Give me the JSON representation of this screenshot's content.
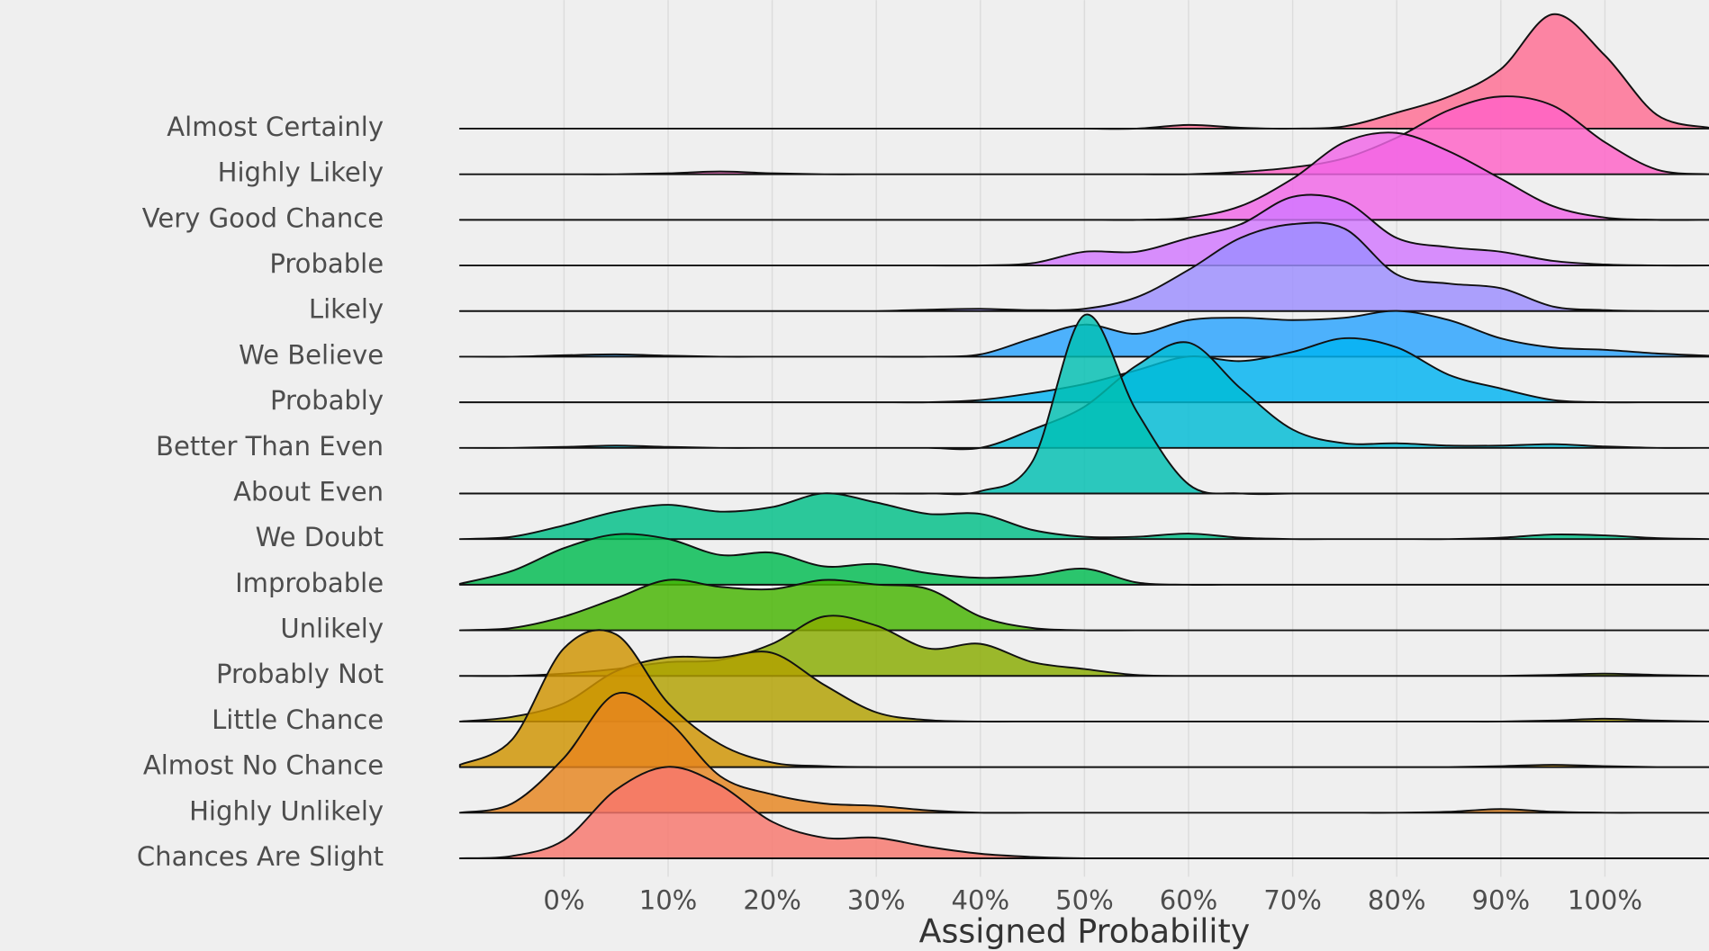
{
  "chart_data": {
    "type": "ridgeline",
    "x_label": "Assigned Probability",
    "xlim": [
      -10,
      110
    ],
    "xticks": [
      {
        "value": 0,
        "label": "0%"
      },
      {
        "value": 10,
        "label": "10%"
      },
      {
        "value": 20,
        "label": "20%"
      },
      {
        "value": 30,
        "label": "30%"
      },
      {
        "value": 40,
        "label": "40%"
      },
      {
        "value": 50,
        "label": "50%"
      },
      {
        "value": 60,
        "label": "60%"
      },
      {
        "value": 70,
        "label": "70%"
      },
      {
        "value": 80,
        "label": "80%"
      },
      {
        "value": 90,
        "label": "90%"
      },
      {
        "value": 100,
        "label": "100%"
      }
    ],
    "grid": true,
    "x": [
      -10,
      -5,
      0,
      5,
      10,
      15,
      20,
      25,
      30,
      35,
      40,
      45,
      50,
      55,
      60,
      65,
      70,
      75,
      80,
      85,
      90,
      95,
      100,
      105,
      110
    ],
    "series": [
      {
        "name": "Almost Certainly",
        "color": "#ff6c92",
        "values": [
          0,
          0,
          0,
          0,
          0,
          0,
          0,
          0,
          0,
          0,
          0,
          0,
          0,
          0,
          0.08,
          0.02,
          0,
          0.05,
          0.35,
          0.7,
          1.3,
          2.5,
          1.6,
          0.3,
          0.02
        ]
      },
      {
        "name": "Highly Likely",
        "color": "#ff61c7",
        "values": [
          0,
          0,
          0,
          0,
          0.02,
          0.06,
          0.02,
          0,
          0,
          0,
          0,
          0,
          0,
          0,
          0,
          0.05,
          0.15,
          0.35,
          0.8,
          1.4,
          1.7,
          1.5,
          0.7,
          0.1,
          0
        ]
      },
      {
        "name": "Very Good Chance",
        "color": "#f166e8",
        "values": [
          0,
          0,
          0,
          0,
          0,
          0,
          0,
          0,
          0,
          0,
          0,
          0,
          0,
          0,
          0.05,
          0.3,
          0.9,
          1.7,
          1.9,
          1.5,
          0.9,
          0.3,
          0.05,
          0,
          0
        ]
      },
      {
        "name": "Probable",
        "color": "#d277ff",
        "values": [
          0,
          0,
          0,
          0,
          0,
          0,
          0,
          0,
          0,
          0,
          0,
          0.05,
          0.3,
          0.3,
          0.6,
          0.9,
          1.5,
          1.4,
          0.6,
          0.4,
          0.3,
          0.1,
          0.02,
          0,
          0
        ]
      },
      {
        "name": "Likely",
        "color": "#9c8dff",
        "values": [
          0,
          0,
          0,
          0,
          0,
          0,
          0,
          0,
          0,
          0.03,
          0.05,
          0.02,
          0.05,
          0.3,
          0.9,
          1.6,
          1.9,
          1.8,
          0.8,
          0.6,
          0.5,
          0.1,
          0.02,
          0,
          0
        ]
      },
      {
        "name": "We Believe",
        "color": "#29a3ff",
        "values": [
          0,
          0,
          0.03,
          0.05,
          0.02,
          0,
          0,
          0,
          0,
          0,
          0.05,
          0.4,
          0.7,
          0.5,
          0.8,
          0.85,
          0.8,
          0.85,
          1.0,
          0.8,
          0.4,
          0.2,
          0.15,
          0.07,
          0.02
        ]
      },
      {
        "name": "Probably",
        "color": "#00b3f2",
        "values": [
          0,
          0,
          0,
          0,
          0,
          0,
          0,
          0,
          0,
          0,
          0.05,
          0.2,
          0.4,
          0.7,
          1.0,
          0.9,
          1.1,
          1.4,
          1.2,
          0.6,
          0.3,
          0.05,
          0,
          0,
          0
        ]
      },
      {
        "name": "Better Than Even",
        "color": "#00bcd6",
        "values": [
          0,
          0,
          0.02,
          0.05,
          0.02,
          0,
          0,
          0,
          0,
          0,
          0,
          0.4,
          0.9,
          1.8,
          2.3,
          1.3,
          0.4,
          0.1,
          0.1,
          0.05,
          0.05,
          0.08,
          0.03,
          0,
          0
        ]
      },
      {
        "name": "About Even",
        "color": "#00c0b2",
        "values": [
          0,
          0,
          0,
          0,
          0,
          0,
          0,
          0,
          0,
          0,
          0.05,
          0.7,
          3.9,
          1.8,
          0.2,
          0,
          0,
          0,
          0,
          0,
          0,
          0,
          0,
          0,
          0
        ]
      },
      {
        "name": "We Doubt",
        "color": "#00c087",
        "values": [
          0,
          0.05,
          0.3,
          0.6,
          0.75,
          0.6,
          0.7,
          1.0,
          0.8,
          0.55,
          0.55,
          0.2,
          0.05,
          0.05,
          0.12,
          0.03,
          0,
          0,
          0,
          0,
          0.03,
          0.1,
          0.08,
          0.02,
          0
        ]
      },
      {
        "name": "Improbable",
        "color": "#00bc51",
        "values": [
          0.02,
          0.3,
          0.8,
          1.1,
          1.0,
          0.65,
          0.7,
          0.4,
          0.45,
          0.25,
          0.15,
          0.2,
          0.35,
          0.05,
          0,
          0,
          0,
          0,
          0,
          0,
          0,
          0,
          0,
          0,
          0
        ]
      },
      {
        "name": "Unlikely",
        "color": "#45b500",
        "values": [
          0,
          0.05,
          0.3,
          0.7,
          1.1,
          0.95,
          0.9,
          1.1,
          1.0,
          0.9,
          0.3,
          0.05,
          0,
          0,
          0,
          0,
          0,
          0,
          0,
          0,
          0,
          0,
          0,
          0,
          0
        ]
      },
      {
        "name": "Probably Not",
        "color": "#89ac00",
        "values": [
          0,
          0,
          0.05,
          0.15,
          0.3,
          0.35,
          0.7,
          1.3,
          1.1,
          0.6,
          0.7,
          0.3,
          0.15,
          0.02,
          0,
          0,
          0,
          0,
          0,
          0,
          0,
          0.02,
          0.05,
          0.02,
          0
        ]
      },
      {
        "name": "Little Chance",
        "color": "#b2a100",
        "values": [
          0,
          0.1,
          0.4,
          1.1,
          1.4,
          1.4,
          1.5,
          0.8,
          0.2,
          0.03,
          0,
          0,
          0,
          0,
          0,
          0,
          0,
          0,
          0,
          0,
          0,
          0.02,
          0.06,
          0.02,
          0
        ]
      },
      {
        "name": "Almost No Chance",
        "color": "#d09400",
        "values": [
          0.05,
          0.6,
          2.6,
          2.9,
          1.4,
          0.5,
          0.1,
          0.02,
          0,
          0,
          0,
          0,
          0,
          0,
          0,
          0,
          0,
          0,
          0,
          0,
          0.02,
          0.05,
          0.02,
          0,
          0
        ]
      },
      {
        "name": "Highly Unlikely",
        "color": "#e7851e",
        "values": [
          0,
          0.2,
          1.2,
          2.6,
          2.0,
          0.8,
          0.4,
          0.2,
          0.15,
          0.05,
          0,
          0,
          0,
          0,
          0,
          0,
          0,
          0,
          0,
          0.02,
          0.08,
          0.02,
          0,
          0,
          0
        ]
      },
      {
        "name": "Chances Are Slight",
        "color": "#f8766d",
        "values": [
          0,
          0.05,
          0.4,
          1.5,
          2.0,
          1.6,
          0.8,
          0.45,
          0.45,
          0.25,
          0.1,
          0.03,
          0,
          0,
          0,
          0,
          0,
          0,
          0,
          0,
          0,
          0,
          0,
          0,
          0
        ]
      }
    ]
  }
}
